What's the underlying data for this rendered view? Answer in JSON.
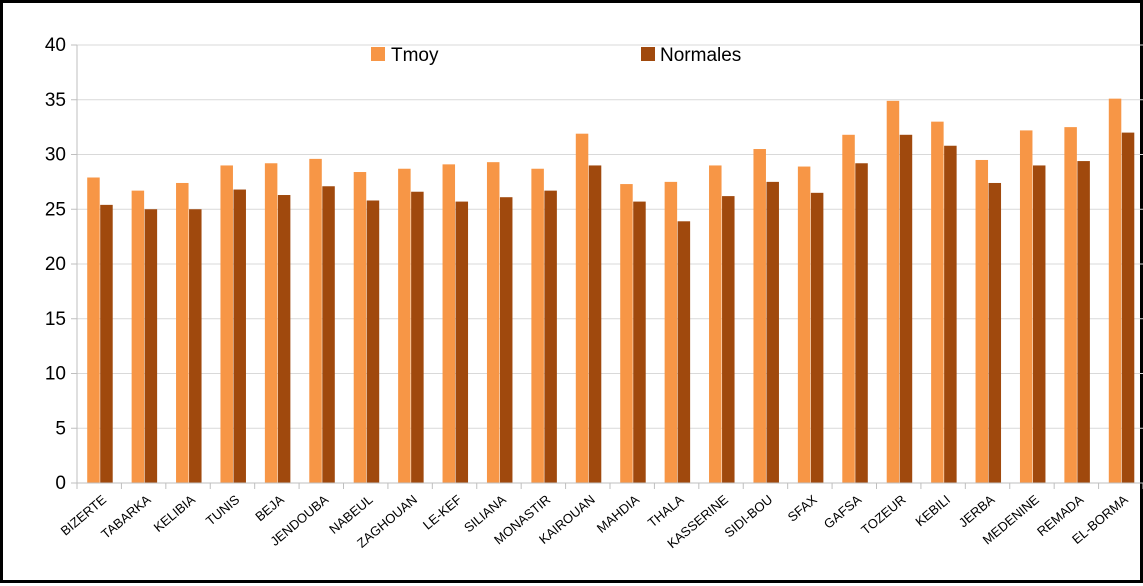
{
  "chart_data": {
    "type": "bar",
    "categories": [
      "BIZERTE",
      "TABARKA",
      "KELIBIA",
      "TUNIS",
      "BEJA",
      "JENDOUBA",
      "NABEUL",
      "ZAGHOUAN",
      "LE-KEF",
      "SILIANA",
      "MONASTIR",
      "KAIROUAN",
      "MAHDIA",
      "THALA",
      "KASSERINE",
      "SIDI-BOU",
      "SFAX",
      "GAFSA",
      "TOZEUR",
      "KEBILI",
      "JERBA",
      "MEDENINE",
      "REMADA",
      "EL-BORMA"
    ],
    "series": [
      {
        "name": "Tmoy",
        "color": "#F79646",
        "values": [
          27.9,
          26.7,
          27.4,
          29.0,
          29.2,
          29.6,
          28.4,
          28.7,
          29.1,
          29.3,
          28.7,
          31.9,
          27.3,
          27.5,
          29.0,
          30.5,
          28.9,
          31.8,
          34.9,
          33.0,
          29.5,
          32.2,
          32.5,
          35.1
        ]
      },
      {
        "name": "Normales",
        "color": "#A0490D",
        "values": [
          25.4,
          25.0,
          25.0,
          26.8,
          26.3,
          27.1,
          25.8,
          26.6,
          25.7,
          26.1,
          26.7,
          29.0,
          25.7,
          23.9,
          26.2,
          27.5,
          26.5,
          29.2,
          31.8,
          30.8,
          27.4,
          29.0,
          29.4,
          32.0
        ]
      }
    ],
    "yticks": [
      "0",
      "5",
      "10",
      "15",
      "20",
      "25",
      "30",
      "35",
      "40"
    ],
    "ylim": [
      0,
      40
    ],
    "grid": true,
    "gridColor": "#D9D9D9",
    "legend": "top-center"
  }
}
